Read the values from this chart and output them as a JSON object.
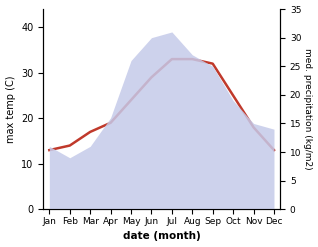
{
  "months": [
    "Jan",
    "Feb",
    "Mar",
    "Apr",
    "May",
    "Jun",
    "Jul",
    "Aug",
    "Sep",
    "Oct",
    "Nov",
    "Dec"
  ],
  "temperature": [
    13,
    14,
    17,
    19,
    24,
    29,
    33,
    33,
    32,
    25,
    18,
    13
  ],
  "precipitation": [
    11,
    9,
    11,
    16,
    26,
    30,
    31,
    27,
    25,
    19,
    15,
    14
  ],
  "temp_color": "#c0392b",
  "precip_color": "#c5cae9",
  "xlabel": "date (month)",
  "ylabel_left": "max temp (C)",
  "ylabel_right": "med. precipitation (kg/m2)",
  "ylim_left": [
    0,
    44
  ],
  "ylim_right": [
    0,
    35
  ],
  "yticks_left": [
    0,
    10,
    20,
    30,
    40
  ],
  "yticks_right": [
    0,
    5,
    10,
    15,
    20,
    25,
    30,
    35
  ],
  "background_color": "#ffffff",
  "line_width": 1.8
}
